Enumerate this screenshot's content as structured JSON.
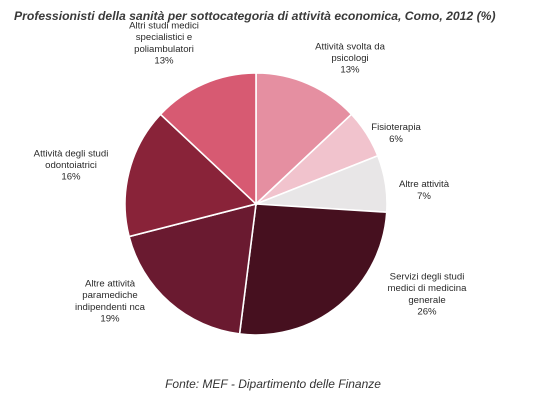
{
  "chart_data": {
    "type": "pie",
    "title": "Professionisti della sanità per sottocategoria di attività economica, Como, 2012 (%)",
    "source": "Fonte: MEF - Dipartimento delle Finanze",
    "slices": [
      {
        "label_lines": [
          "Attività svolta da",
          "psicologi"
        ],
        "value": 13,
        "value_label": "13%",
        "color": "#e58fa1"
      },
      {
        "label_lines": [
          "Fisioterapia"
        ],
        "value": 6,
        "value_label": "6%",
        "color": "#f1c3cd"
      },
      {
        "label_lines": [
          "Altre attività"
        ],
        "value": 7,
        "value_label": "7%",
        "color": "#e8e6e7"
      },
      {
        "label_lines": [
          "Servizi degli studi",
          "medici di medicina",
          "generale"
        ],
        "value": 26,
        "value_label": "26%",
        "color": "#46101f"
      },
      {
        "label_lines": [
          "Altre attività",
          "paramediche",
          "indipendenti nca"
        ],
        "value": 19,
        "value_label": "19%",
        "color": "#6a1a30"
      },
      {
        "label_lines": [
          "Attività degli studi",
          "odontoiatrici"
        ],
        "value": 16,
        "value_label": "16%",
        "color": "#892339"
      },
      {
        "label_lines": [
          "Altri studi medici",
          "specialistici e",
          "poliambulatori"
        ],
        "value": 13,
        "value_label": "13%",
        "color": "#d75a72"
      }
    ]
  }
}
